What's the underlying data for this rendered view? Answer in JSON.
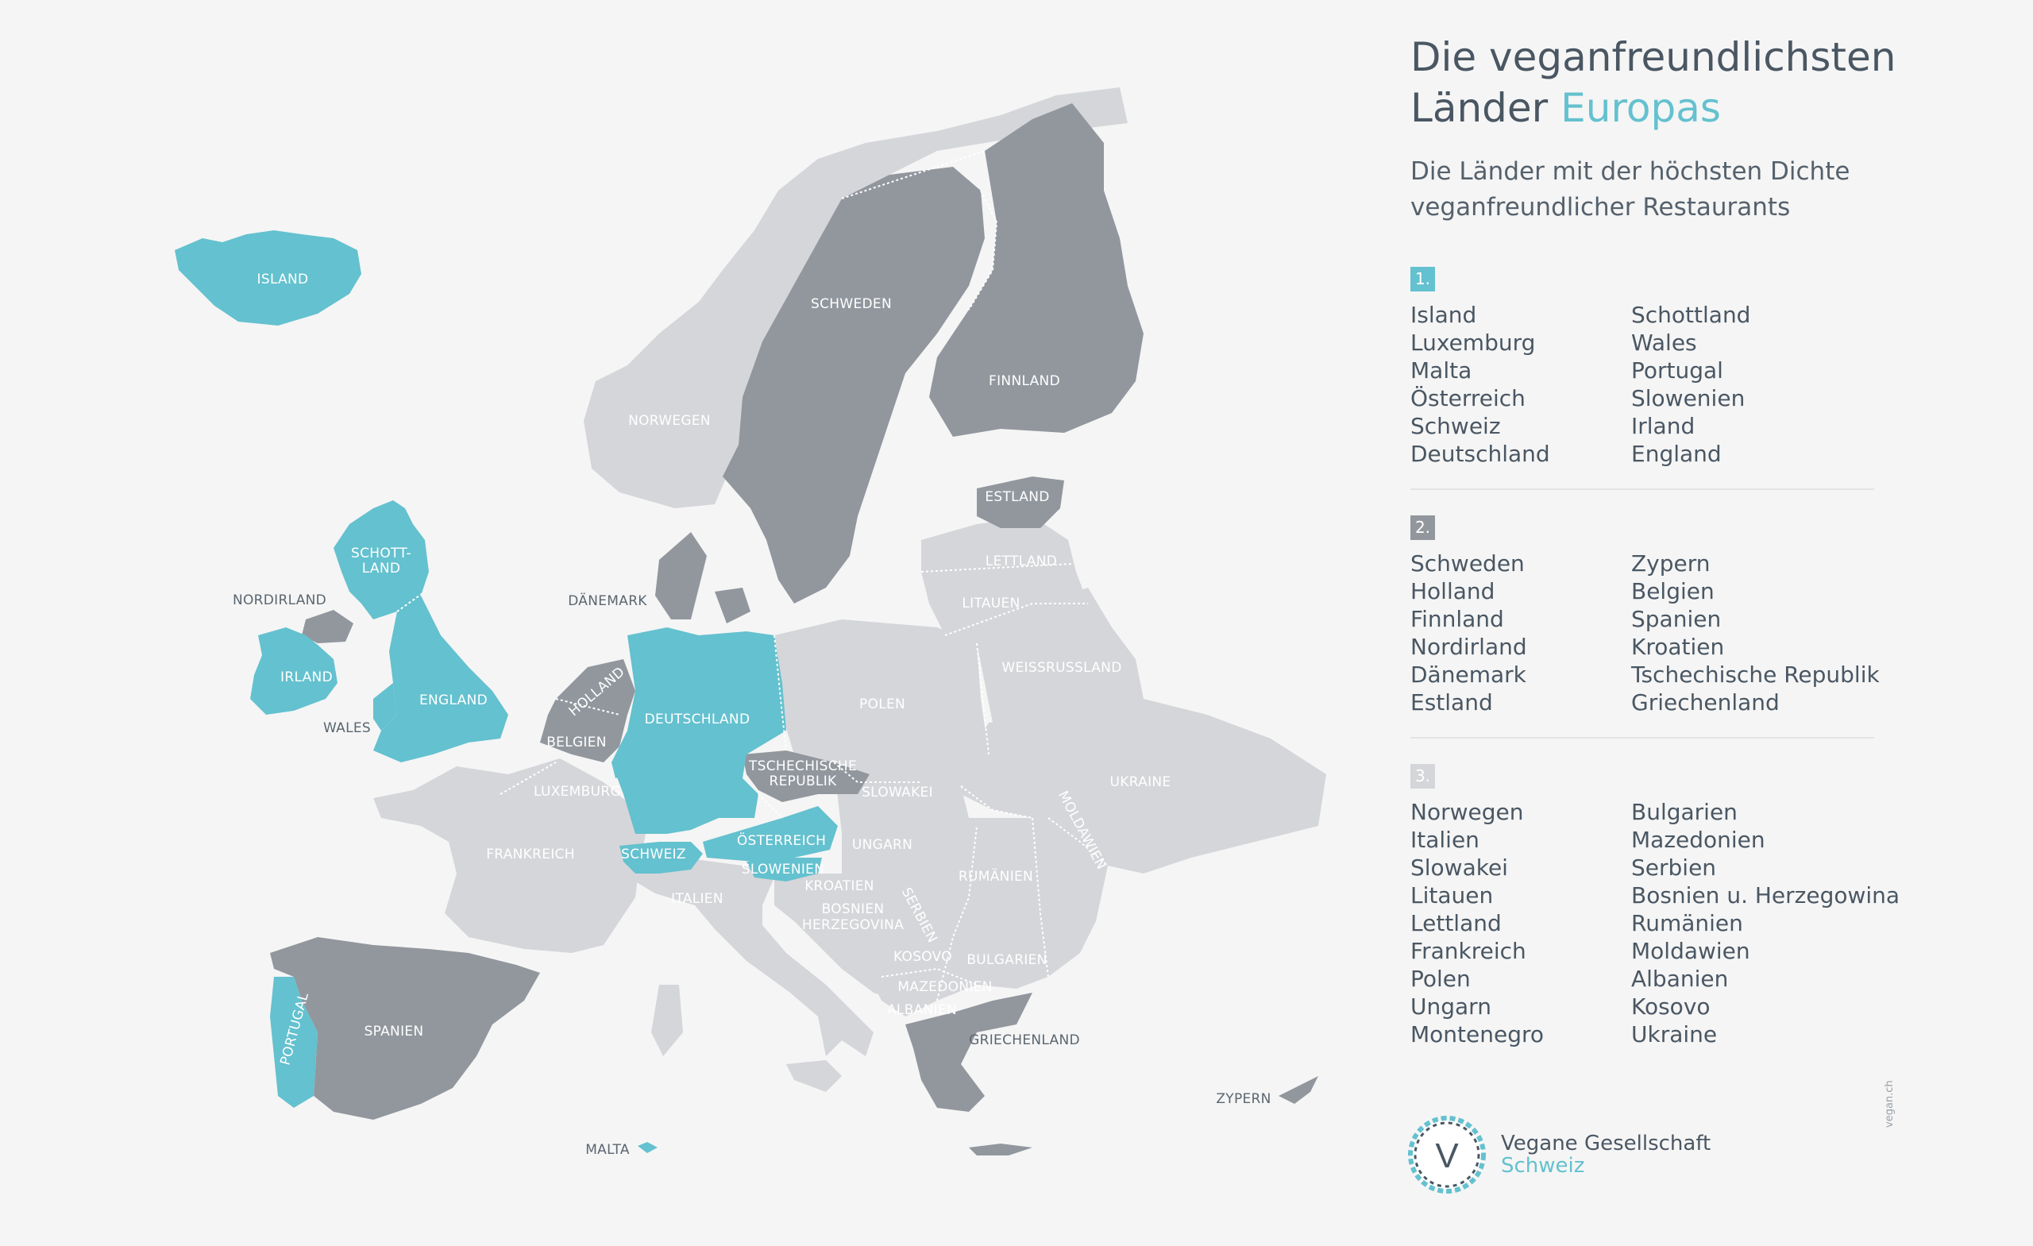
{
  "title": {
    "line1": "Die veganfreundlichsten",
    "line2_plain": "Länder",
    "line2_accent": "Europas"
  },
  "subtitle": {
    "line1": "Die Länder mit der höchsten Dichte",
    "line2": "veganfreundlicher Restaurants"
  },
  "colors": {
    "rank1": "#64c1cf",
    "rank2": "#92979e",
    "rank3": "#d5d6d9",
    "accent": "#64c1cf",
    "text": "#4a5763",
    "background": "#f5f5f5"
  },
  "ranking": [
    {
      "badge": "1.",
      "col1": [
        "Island",
        "Luxemburg",
        "Malta",
        "Österreich",
        "Schweiz",
        "Deutschland"
      ],
      "col2": [
        "Schottland",
        "Wales",
        "Portugal",
        "Slowenien",
        "Irland",
        "England"
      ]
    },
    {
      "badge": "2.",
      "col1": [
        "Schweden",
        "Holland",
        "Finnland",
        "Nordirland",
        "Dänemark",
        "Estland"
      ],
      "col2": [
        "Zypern",
        "Belgien",
        "Spanien",
        "Kroatien",
        "Tschechische Republik",
        "Griechenland"
      ]
    },
    {
      "badge": "3.",
      "col1": [
        "Norwegen",
        "Italien",
        "Slowakei",
        "Litauen",
        "Lettland",
        "Frankreich",
        "Polen",
        "Ungarn",
        "Montenegro"
      ],
      "col2": [
        "Bulgarien",
        "Mazedonien",
        "Serbien",
        "Bosnien u. Herzegowina",
        "Rumänien",
        "Moldawien",
        "Albanien",
        "Kosovo",
        "Ukraine"
      ]
    }
  ],
  "map_labels": {
    "island": "ISLAND",
    "schweden": "SCHWEDEN",
    "finnland": "FINNLAND",
    "norwegen": "NORWEGEN",
    "estland": "ESTLAND",
    "lettland": "LETTLAND",
    "litauen": "LITAUEN",
    "schottland1": "SCHOTT-",
    "schottland2": "LAND",
    "nordirland": "NORDIRLAND",
    "daenemark": "DÄNEMARK",
    "irland": "IRLAND",
    "england": "ENGLAND",
    "wales": "WALES",
    "holland": "HOLLAND",
    "belgien": "BELGIEN",
    "deutschland": "DEUTSCHLAND",
    "polen": "POLEN",
    "weissrussland": "WEISSRUSSLAND",
    "tschechien1": "TSCHECHISCHE",
    "tschechien2": "REPUBLIK",
    "slowakei": "SLOWAKEI",
    "luxemburg": "LUXEMBURG",
    "ukraine": "UKRAINE",
    "frankreich": "FRANKREICH",
    "schweiz": "SCHWEIZ",
    "oesterreich": "ÖSTERREICH",
    "ungarn": "UNGARN",
    "moldawien": "MOLDAWIEN",
    "slowenien": "SLOWENIEN",
    "kroatien": "KROATIEN",
    "rumaenien": "RUMÄNIEN",
    "italien": "ITALIEN",
    "bosnien1": "BOSNIEN",
    "bosnien2": "HERZEGOVINA",
    "serbien": "SERBIEN",
    "kosovo": "KOSOVO",
    "bulgarien": "BULGARIEN",
    "mazedonien": "MAZEDONIEN",
    "albanien": "ALBANIEN",
    "griechenland": "GRIECHENLAND",
    "portugal": "PORTUGAL",
    "spanien": "SPANIEN",
    "zypern": "ZYPERN",
    "malta": "MALTA"
  },
  "logo": {
    "letter": "V",
    "line1": "Vegane Gesellschaft",
    "line2": "Schweiz"
  },
  "side_note": "vegan.ch"
}
